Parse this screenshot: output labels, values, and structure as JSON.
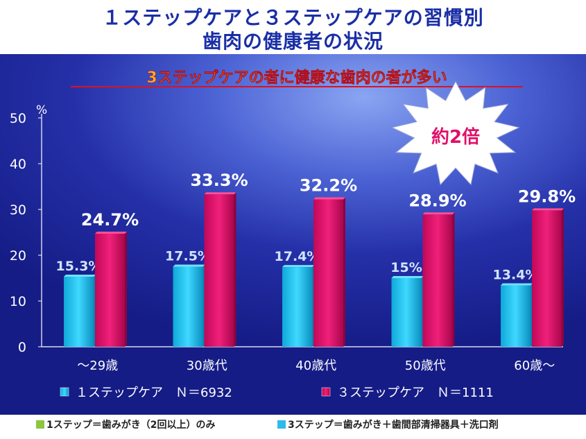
{
  "title": {
    "line1": "１ステップケアと３ステップケアの習慣別",
    "line2": "歯肉の健康者の状況"
  },
  "subtitle": "3ステップケアの者に健康な歯肉の者が多い",
  "callout": "約2倍",
  "footer": {
    "note1": "1ステップ＝歯みがき（2回以上）のみ",
    "note1_color": "#8cc63f",
    "note2": "3ステップ＝歯みがき＋歯間部清掃器具＋洗口剤",
    "note2_color": "#2ebbe8"
  },
  "chart_data": {
    "type": "bar",
    "unit": "%",
    "categories": [
      "～29歳",
      "30歳代",
      "40歳代",
      "50歳代",
      "60歳～"
    ],
    "series": [
      {
        "name": "１ステップケア　Ｎ＝6932",
        "color": "#1ec8f0",
        "values": [
          15.3,
          17.5,
          17.4,
          15,
          13.4
        ],
        "labels": [
          "15.3%",
          "17.5%",
          "17.4%",
          "15%",
          "13.4%"
        ]
      },
      {
        "name": "３ステップケア　Ｎ＝1111",
        "color": "#e8106a",
        "values": [
          24.7,
          33.3,
          32.2,
          28.9,
          29.8
        ],
        "labels": [
          "24.7%",
          "33.3%",
          "32.2%",
          "28.9%",
          "29.8%"
        ]
      }
    ],
    "ylim": [
      0,
      50
    ],
    "yticks": [
      "0",
      "10",
      "20",
      "30",
      "40",
      "50"
    ],
    "grid": false,
    "legend_position": "bottom"
  }
}
